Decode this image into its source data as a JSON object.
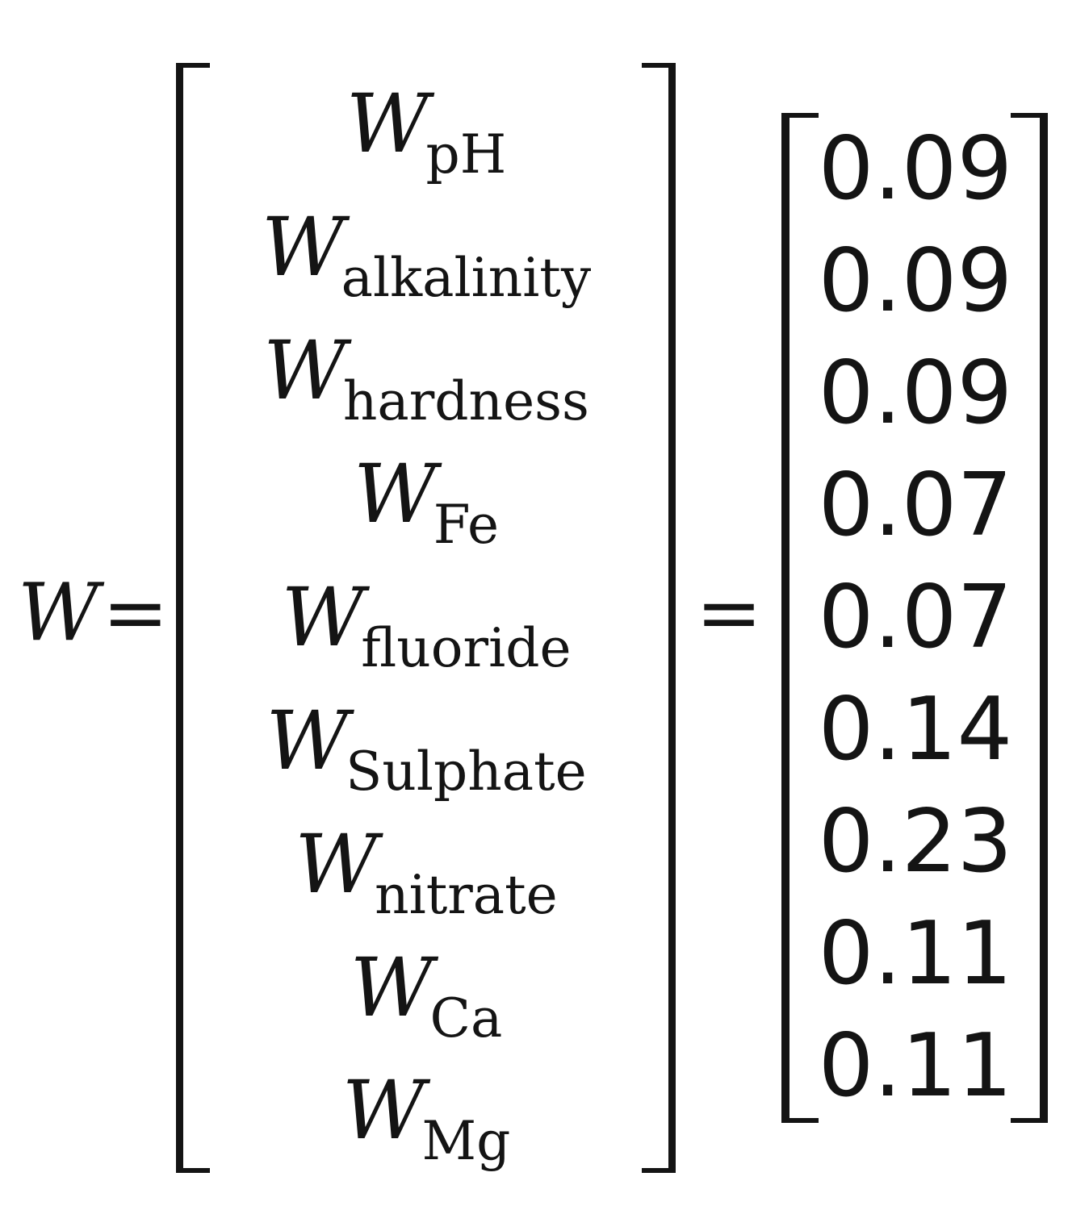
{
  "equation": {
    "lhs_symbol": "W",
    "equals_sign": "=",
    "weights": [
      {
        "symbol": "W",
        "subscript": "pH"
      },
      {
        "symbol": "W",
        "subscript": "alkalinity"
      },
      {
        "symbol": "W",
        "subscript": "hardness"
      },
      {
        "symbol": "W",
        "subscript": "Fe"
      },
      {
        "symbol": "W",
        "subscript": "fluoride"
      },
      {
        "symbol": "W",
        "subscript": "Sulphate"
      },
      {
        "symbol": "W",
        "subscript": "nitrate"
      },
      {
        "symbol": "W",
        "subscript": "Ca"
      },
      {
        "symbol": "W",
        "subscript": "Mg"
      }
    ],
    "values": [
      "0.09",
      "0.09",
      "0.09",
      "0.07",
      "0.07",
      "0.14",
      "0.23",
      "0.11",
      "0.11"
    ]
  }
}
